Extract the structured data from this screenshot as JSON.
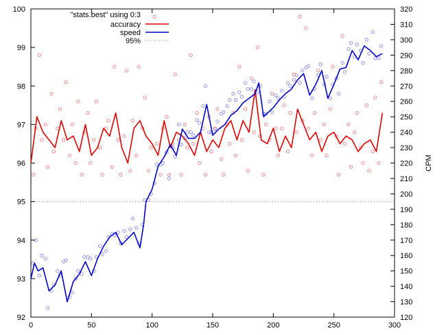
{
  "chart_data": {
    "type": "line",
    "x_ticks": [
      0,
      50,
      100,
      150,
      200,
      250,
      300
    ],
    "y_ticks": [
      92,
      93,
      94,
      95,
      96,
      97,
      98,
      99,
      100
    ],
    "y2_ticks": [
      120,
      130,
      140,
      150,
      160,
      170,
      180,
      190,
      200,
      210,
      220,
      230,
      240,
      250,
      260,
      270,
      280,
      290,
      300,
      310,
      320
    ],
    "xlim": [
      0,
      300
    ],
    "ylim": [
      92,
      100
    ],
    "y2lim": [
      120,
      320
    ],
    "y2label": "CPM",
    "grid": false,
    "legend": {
      "placement": "top-left",
      "entries": [
        {
          "label": "\"stats.best\" using 0:3",
          "style": "points"
        },
        {
          "label": "accuracy",
          "style": "line"
        },
        {
          "label": "speed",
          "style": "line"
        },
        {
          "label": "95%",
          "style": "dotted"
        }
      ]
    },
    "colors": {
      "accuracy": "#e00000",
      "accuracy_points": "#f08080",
      "speed": "#0000cc",
      "speed_points": "#8888ee",
      "threshold": "#e06060"
    },
    "threshold": {
      "name": "95%",
      "value": 95
    },
    "series": [
      {
        "name": "accuracy",
        "axis": "y",
        "x": [
          0,
          5,
          10,
          15,
          20,
          25,
          30,
          35,
          40,
          45,
          50,
          55,
          60,
          65,
          70,
          75,
          80,
          85,
          90,
          95,
          100,
          105,
          110,
          115,
          120,
          125,
          130,
          135,
          140,
          145,
          150,
          155,
          160,
          165,
          170,
          175,
          180,
          185,
          190,
          195,
          200,
          205,
          210,
          215,
          220,
          225,
          230,
          235,
          240,
          245,
          250,
          255,
          260,
          265,
          270,
          275,
          280,
          285,
          290
        ],
        "y": [
          96.0,
          97.2,
          96.8,
          96.6,
          96.4,
          97.1,
          96.6,
          96.7,
          96.3,
          97.0,
          96.2,
          96.4,
          96.9,
          96.7,
          97.3,
          96.4,
          96.0,
          96.9,
          97.1,
          96.7,
          96.5,
          96.2,
          97.1,
          96.4,
          96.8,
          96.7,
          96.5,
          96.2,
          96.8,
          96.3,
          96.6,
          96.4,
          96.9,
          97.1,
          96.6,
          97.1,
          96.8,
          97.9,
          96.6,
          96.5,
          96.9,
          96.3,
          96.7,
          96.4,
          97.4,
          97.0,
          96.6,
          96.8,
          96.3,
          96.7,
          96.8,
          96.5,
          96.7,
          96.6,
          96.3,
          96.5,
          96.6,
          96.3,
          97.3
        ]
      },
      {
        "name": "speed",
        "axis": "y2",
        "x": [
          0,
          3,
          6,
          10,
          15,
          20,
          25,
          30,
          35,
          40,
          45,
          50,
          55,
          60,
          65,
          70,
          75,
          80,
          85,
          90,
          93,
          95,
          100,
          105,
          110,
          115,
          120,
          125,
          130,
          135,
          140,
          145,
          150,
          155,
          160,
          165,
          170,
          175,
          180,
          185,
          188,
          192,
          200,
          205,
          210,
          215,
          220,
          225,
          230,
          235,
          240,
          245,
          250,
          255,
          260,
          265,
          270,
          275,
          280,
          285,
          290
        ],
        "y": [
          145,
          155,
          150,
          152,
          137,
          141,
          150,
          130,
          143,
          148,
          156,
          147,
          158,
          166,
          172,
          175,
          167,
          171,
          175,
          165,
          180,
          195,
          203,
          218,
          224,
          232,
          225,
          242,
          236,
          236,
          240,
          258,
          238,
          242,
          245,
          251,
          254,
          259,
          262,
          265,
          272,
          250,
          256,
          261,
          265,
          268,
          274,
          278,
          264,
          271,
          280,
          262,
          271,
          281,
          282,
          293,
          287,
          296,
          293,
          289,
          291
        ]
      }
    ],
    "scatter": [
      {
        "name": "accuracy points",
        "axis": "y",
        "x": [
          2,
          4,
          7,
          9,
          12,
          14,
          17,
          19,
          22,
          24,
          27,
          29,
          32,
          34,
          37,
          39,
          42,
          44,
          47,
          49,
          52,
          54,
          57,
          59,
          62,
          64,
          67,
          69,
          72,
          74,
          77,
          79,
          82,
          84,
          87,
          89,
          92,
          94,
          97,
          99,
          102,
          104,
          107,
          109,
          112,
          114,
          117,
          119,
          122,
          124,
          127,
          129,
          132,
          134,
          137,
          139,
          142,
          144,
          147,
          149,
          152,
          154,
          157,
          159,
          162,
          164,
          167,
          169,
          172,
          174,
          177,
          179,
          182,
          184,
          187,
          189,
          192,
          194,
          197,
          199,
          202,
          204,
          207,
          209,
          212,
          214,
          217,
          219,
          222,
          224,
          227,
          229,
          232,
          234,
          237,
          239,
          242,
          244,
          247,
          249,
          252,
          254,
          257,
          259,
          262,
          264,
          267,
          269,
          272,
          274,
          277,
          279,
          282,
          284,
          287,
          289
        ],
        "y": [
          95.7,
          96.9,
          98.8,
          96.6,
          97.0,
          95.9,
          97.8,
          96.3,
          96.9,
          97.4,
          96.6,
          98.1,
          96.2,
          97.0,
          96.0,
          97.6,
          95.7,
          96.8,
          97.3,
          96.0,
          96.6,
          97.6,
          96.4,
          95.7,
          96.9,
          97.1,
          95.9,
          98.5,
          96.6,
          95.7,
          96.7,
          98.4,
          95.8,
          97.1,
          96.2,
          98.5,
          96.9,
          97.7,
          95.8,
          96.4,
          99.8,
          96.5,
          95.7,
          96.9,
          97.2,
          95.7,
          96.5,
          98.3,
          96.6,
          95.7,
          97.0,
          96.4,
          98.8,
          96.5,
          97.3,
          96.0,
          96.9,
          95.7,
          97.2,
          96.3,
          96.9,
          97.4,
          96.1,
          95.7,
          97.0,
          96.5,
          97.3,
          96.2,
          98.5,
          96.6,
          97.4,
          95.8,
          98.2,
          96.8,
          99.0,
          96.7,
          95.7,
          97.0,
          96.6,
          97.8,
          96.9,
          96.2,
          96.9,
          97.5,
          96.3,
          97.3,
          98.3,
          96.8,
          99.8,
          97.1,
          99.5,
          96.9,
          96.2,
          97.3,
          98.4,
          96.6,
          97.0,
          96.2,
          97.4,
          98.5,
          96.7,
          95.7,
          99.3,
          96.5,
          97.0,
          95.9,
          96.8,
          97.3,
          96.4,
          96.0,
          97.5,
          95.8,
          96.3,
          97.7,
          96.0,
          98.1
        ]
      },
      {
        "name": "speed points",
        "axis": "y2",
        "x": [
          2,
          4,
          7,
          9,
          12,
          14,
          17,
          19,
          22,
          24,
          27,
          29,
          32,
          34,
          37,
          39,
          42,
          44,
          47,
          49,
          52,
          54,
          57,
          59,
          62,
          64,
          67,
          69,
          72,
          74,
          77,
          79,
          82,
          84,
          87,
          89,
          92,
          94,
          97,
          99,
          102,
          104,
          107,
          109,
          112,
          114,
          117,
          119,
          122,
          124,
          127,
          129,
          132,
          134,
          137,
          139,
          142,
          144,
          147,
          149,
          152,
          154,
          157,
          159,
          162,
          164,
          167,
          169,
          172,
          174,
          177,
          179,
          182,
          184,
          187,
          189,
          192,
          194,
          197,
          199,
          202,
          204,
          207,
          209,
          212,
          214,
          217,
          219,
          222,
          224,
          227,
          229,
          232,
          234,
          237,
          239,
          242,
          244,
          247,
          249,
          252,
          254,
          257,
          259,
          262,
          264,
          267,
          269,
          272,
          274,
          277,
          279,
          282,
          284,
          287,
          289
        ],
        "y": [
          155,
          170,
          147,
          160,
          158,
          126,
          137,
          141,
          150,
          147,
          156,
          157,
          133,
          136,
          145,
          150,
          148,
          159,
          159,
          158,
          150,
          159,
          166,
          161,
          163,
          172,
          174,
          173,
          175,
          168,
          176,
          172,
          177,
          184,
          178,
          168,
          180,
          196,
          196,
          200,
          207,
          219,
          219,
          220,
          227,
          210,
          230,
          224,
          245,
          232,
          236,
          240,
          240,
          238,
          248,
          246,
          257,
          270,
          240,
          240,
          242,
          247,
          252,
          253,
          257,
          261,
          265,
          261,
          266,
          263,
          272,
          268,
          268,
          273,
          266,
          270,
          252,
          252,
          260,
          253,
          264,
          262,
          267,
          263,
          272,
          270,
          274,
          277,
          272,
          280,
          282,
          283,
          262,
          268,
          277,
          284,
          271,
          276,
          262,
          271,
          275,
          265,
          285,
          279,
          294,
          298,
          289,
          297,
          293,
          285,
          300,
          291,
          305,
          288,
          288,
          296
        ]
      }
    ]
  }
}
